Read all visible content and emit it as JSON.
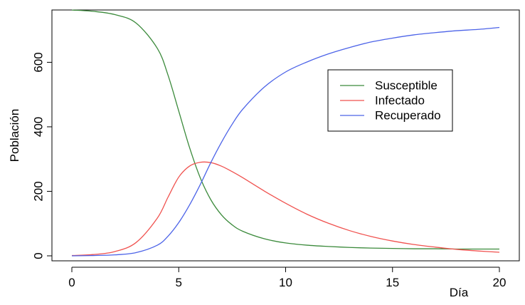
{
  "chart_data": {
    "type": "line",
    "xlabel": "Día",
    "ylabel": "Población",
    "xlim": [
      0,
      20
    ],
    "ylim": [
      0,
      760
    ],
    "x_ticks": [
      0,
      5,
      10,
      15,
      20
    ],
    "y_ticks": [
      0,
      200,
      400,
      600
    ],
    "grid": false,
    "legend_position": "top-right",
    "x": [
      0,
      1,
      2,
      3,
      4,
      4.5,
      5,
      5.5,
      6,
      6.5,
      7,
      7.5,
      8,
      9,
      10,
      11,
      12,
      13,
      14,
      15,
      16,
      17,
      18,
      19,
      20
    ],
    "series": [
      {
        "name": "Susceptible",
        "color": "#3b8a3b",
        "values": [
          762,
          758,
          748,
          722,
          643,
          560,
          449,
          337,
          243,
          174,
          127,
          96,
          76,
          53,
          40,
          33,
          29,
          26,
          24,
          23,
          22,
          22,
          21,
          21,
          21
        ]
      },
      {
        "name": "Infectado",
        "color": "#f0524f",
        "values": [
          1,
          4,
          13,
          41,
          117,
          182,
          244,
          278,
          290,
          289,
          278,
          261,
          242,
          201,
          163,
          129,
          101,
          78,
          60,
          46,
          35,
          27,
          20,
          15,
          11
        ]
      },
      {
        "name": "Recuperado",
        "color": "#4c63e8",
        "values": [
          0,
          1,
          3,
          10,
          33,
          61,
          103,
          157,
          220,
          289,
          352,
          408,
          455,
          523,
          570,
          601,
          626,
          646,
          663,
          675,
          685,
          692,
          698,
          702,
          708
        ]
      }
    ]
  }
}
